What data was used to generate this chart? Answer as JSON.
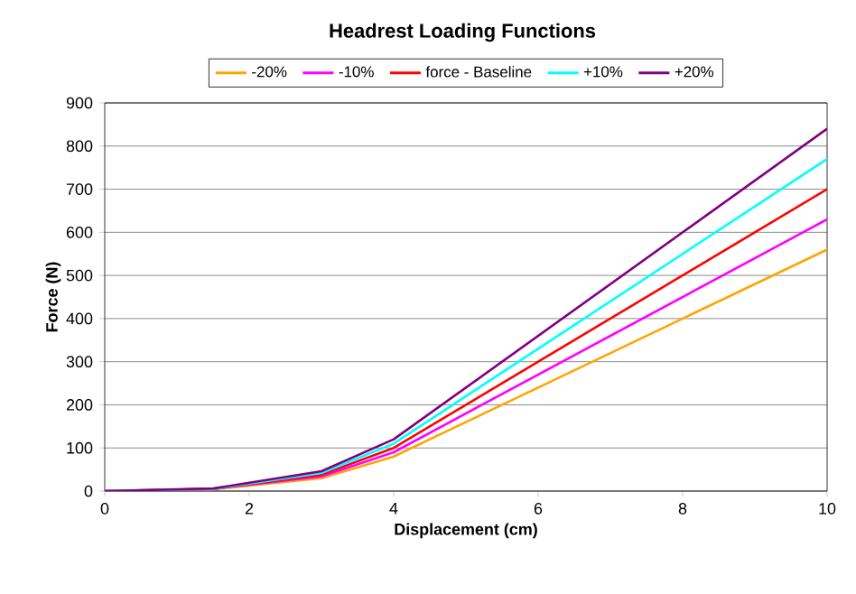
{
  "chart_data": {
    "type": "line",
    "title": "Headrest Loading Functions",
    "xlabel": "Displacement (cm)",
    "ylabel": "Force (N)",
    "x": [
      0,
      1.5,
      3,
      4,
      10
    ],
    "series": [
      {
        "name": "-20%",
        "color": "#ffa500",
        "values": [
          0,
          4,
          30,
          80,
          560
        ]
      },
      {
        "name": "-10%",
        "color": "#ff00ff",
        "values": [
          0,
          5,
          34,
          90,
          630
        ]
      },
      {
        "name": "force - Baseline",
        "color": "#ff0000",
        "values": [
          0,
          5,
          38,
          100,
          700
        ]
      },
      {
        "name": "+10%",
        "color": "#00ffff",
        "values": [
          0,
          5,
          42,
          110,
          770
        ]
      },
      {
        "name": "+20%",
        "color": "#800080",
        "values": [
          0,
          6,
          46,
          120,
          840
        ]
      }
    ],
    "xlim": [
      0,
      10
    ],
    "xticks": [
      0,
      2,
      4,
      6,
      8,
      10
    ],
    "ylim": [
      0,
      900
    ],
    "yticks": [
      0,
      100,
      200,
      300,
      400,
      500,
      600,
      700,
      800,
      900
    ],
    "grid": "y",
    "legend": "top",
    "marker": "none",
    "line_style": "solid"
  }
}
